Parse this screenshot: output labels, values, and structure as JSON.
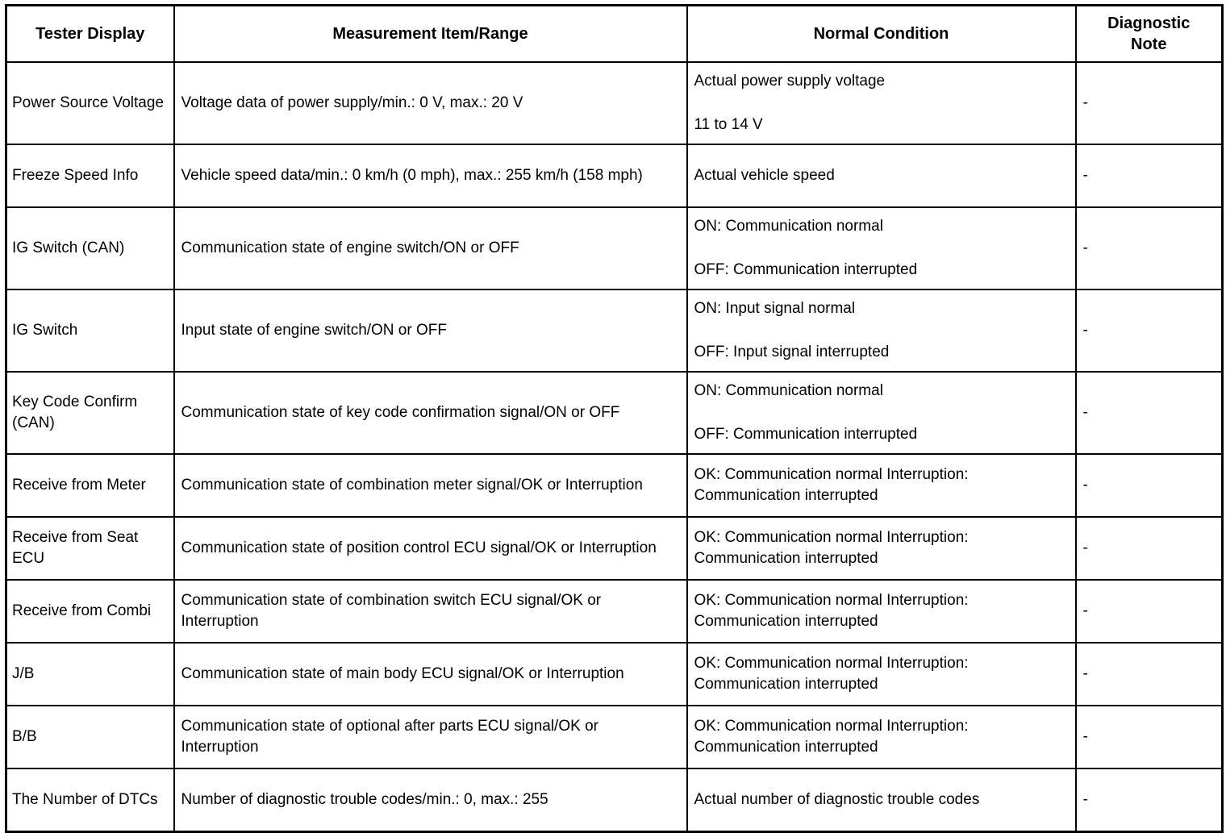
{
  "table": {
    "headers": [
      "Tester Display",
      "Measurement Item/Range",
      "Normal Condition",
      "Diagnostic Note"
    ],
    "rows": [
      {
        "tester_display": "Power Source Voltage",
        "measurement": "Voltage data of power supply/min.: 0 V, max.: 20 V",
        "normal_condition": [
          "Actual power supply voltage",
          "11 to 14 V"
        ],
        "diagnostic_note": "-"
      },
      {
        "tester_display": "Freeze Speed Info",
        "measurement": "Vehicle speed data/min.: 0 km/h (0 mph), max.: 255 km/h (158 mph)",
        "normal_condition": [
          "Actual vehicle speed"
        ],
        "diagnostic_note": "-"
      },
      {
        "tester_display": "IG Switch (CAN)",
        "measurement": "Communication state of engine switch/ON or OFF",
        "normal_condition": [
          "ON: Communication normal",
          "OFF: Communication interrupted"
        ],
        "diagnostic_note": "-"
      },
      {
        "tester_display": "IG Switch",
        "measurement": "Input state of engine switch/ON or OFF",
        "normal_condition": [
          "ON: Input signal normal",
          "OFF: Input signal interrupted"
        ],
        "diagnostic_note": "-"
      },
      {
        "tester_display": "Key Code Confirm (CAN)",
        "measurement": "Communication state of key code confirmation signal/ON or OFF",
        "normal_condition": [
          "ON: Communication normal",
          "OFF: Communication interrupted"
        ],
        "diagnostic_note": "-"
      },
      {
        "tester_display": "Receive from Meter",
        "measurement": "Communication state of combination meter signal/OK or Interruption",
        "normal_condition": [
          "OK: Communication normal Interruption: Communication interrupted"
        ],
        "diagnostic_note": "-"
      },
      {
        "tester_display": "Receive from Seat ECU",
        "measurement": "Communication state of position control ECU signal/OK or Interruption",
        "normal_condition": [
          "OK: Communication normal Interruption: Communication interrupted"
        ],
        "diagnostic_note": "-"
      },
      {
        "tester_display": "Receive from Combi",
        "measurement": "Communication state of combination switch ECU signal/OK or Interruption",
        "normal_condition": [
          "OK: Communication normal Interruption: Communication interrupted"
        ],
        "diagnostic_note": "-"
      },
      {
        "tester_display": "J/B",
        "measurement": "Communication state of main body ECU signal/OK or Interruption",
        "normal_condition": [
          "OK: Communication normal Interruption: Communication interrupted"
        ],
        "diagnostic_note": "-"
      },
      {
        "tester_display": "B/B",
        "measurement": "Communication state of optional after parts ECU signal/OK or Interruption",
        "normal_condition": [
          "OK: Communication normal Interruption: Communication interrupted"
        ],
        "diagnostic_note": "-"
      },
      {
        "tester_display": "The Number of DTCs",
        "measurement": "Number of diagnostic trouble codes/min.: 0, max.: 255",
        "normal_condition": [
          "Actual number of diagnostic trouble codes"
        ],
        "diagnostic_note": "-"
      }
    ]
  }
}
